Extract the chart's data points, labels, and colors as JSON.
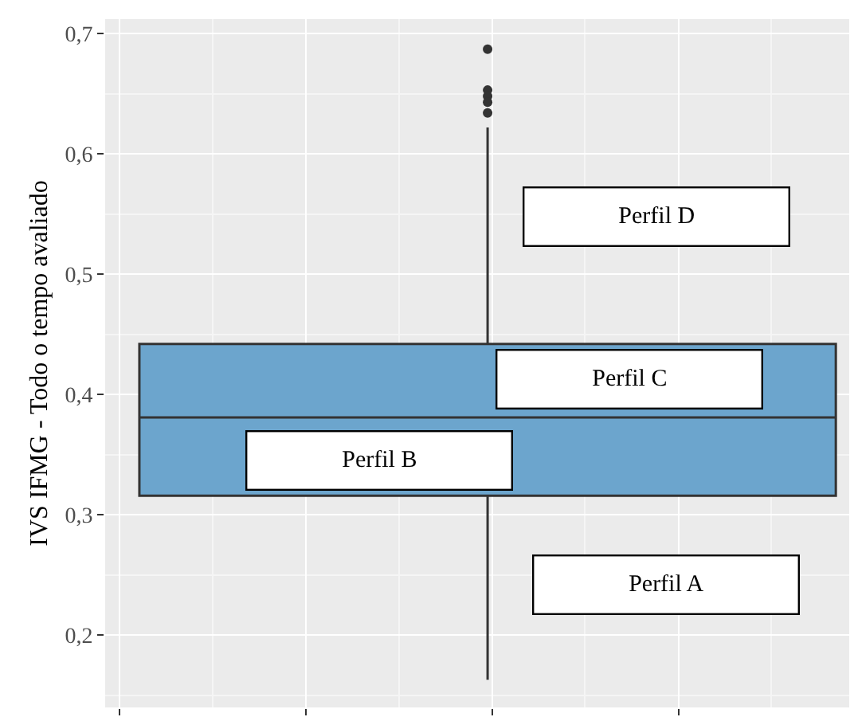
{
  "chart_data": {
    "type": "box",
    "ylabel": "IVS IFMG - Todo o tempo avaliado",
    "categories": [
      null
    ],
    "series": [
      {
        "color": "#6ca5cd",
        "boxes": [
          {
            "low": 0.163,
            "q1": 0.316,
            "median": 0.381,
            "q3": 0.442,
            "high": 0.622,
            "outliers": [
              0.687,
              0.653,
              0.648,
              0.643,
              0.634
            ]
          }
        ]
      }
    ],
    "ylim": [
      0.14,
      0.712
    ],
    "yticks": [
      {
        "value": 0.2,
        "label": "0,2"
      },
      {
        "value": 0.3,
        "label": "0,3"
      },
      {
        "value": 0.4,
        "label": "0,4"
      },
      {
        "value": 0.5,
        "label": "0,5"
      },
      {
        "value": 0.6,
        "label": "0,6"
      },
      {
        "value": 0.7,
        "label": "0,7"
      }
    ],
    "grid": true,
    "tick_labels": "y",
    "annotations": [
      "Perfil D",
      "Perfil C",
      "Perfil B",
      "Perfil A"
    ]
  }
}
